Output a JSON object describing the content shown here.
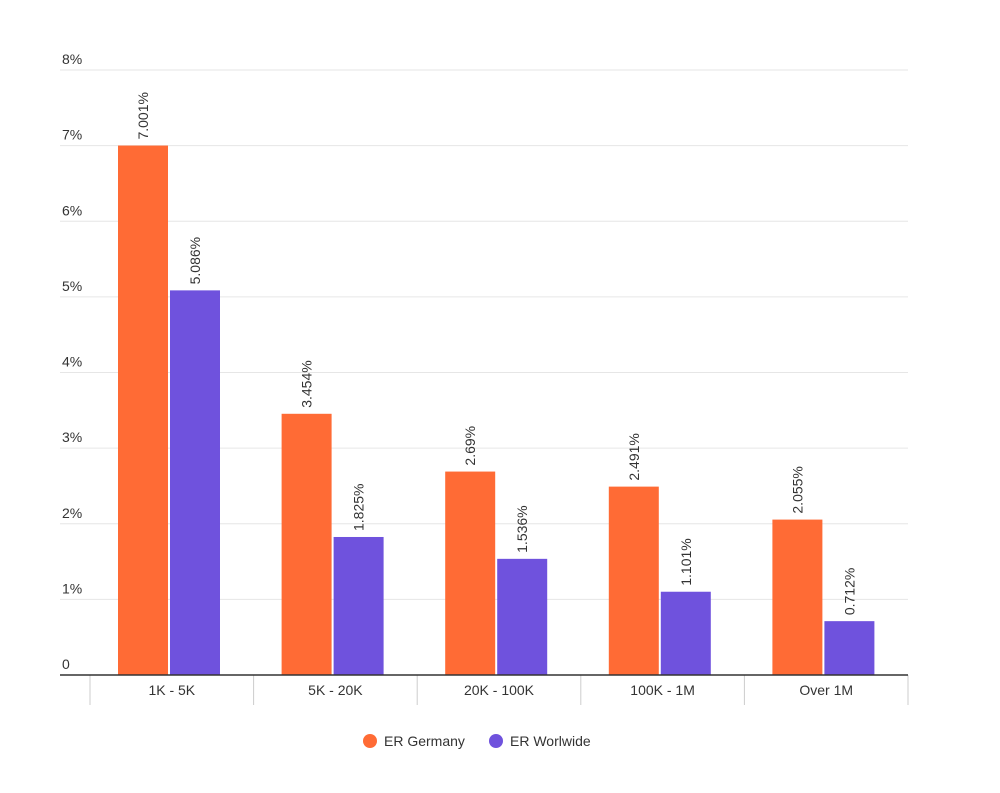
{
  "chart_data": {
    "type": "bar",
    "categories": [
      "1K - 5K",
      "5K - 20K",
      "20K - 100K",
      "100K - 1M",
      "Over 1M"
    ],
    "series": [
      {
        "name": "ER Germany",
        "color": "#ff6b35",
        "values": [
          7.001,
          3.454,
          2.69,
          2.491,
          2.055
        ],
        "labels": [
          "7.001%",
          "3.454%",
          "2.69%",
          "2.491%",
          "2.055%"
        ]
      },
      {
        "name": "ER Worlwide",
        "color": "#6f52dd",
        "values": [
          5.086,
          1.825,
          1.536,
          1.101,
          0.712
        ],
        "labels": [
          "5.086%",
          "1.825%",
          "1.536%",
          "1.101%",
          "0.712%"
        ]
      }
    ],
    "yticks": [
      {
        "value": 0,
        "label": "0"
      },
      {
        "value": 1,
        "label": "1%"
      },
      {
        "value": 2,
        "label": "2%"
      },
      {
        "value": 3,
        "label": "3%"
      },
      {
        "value": 4,
        "label": "4%"
      },
      {
        "value": 5,
        "label": "5%"
      },
      {
        "value": 6,
        "label": "6%"
      },
      {
        "value": 7,
        "label": "7%"
      },
      {
        "value": 8,
        "label": "8%"
      }
    ],
    "ylim": [
      0,
      8
    ],
    "grid": true,
    "legend_position": "bottom-center",
    "title": "",
    "xlabel": "",
    "ylabel": ""
  }
}
